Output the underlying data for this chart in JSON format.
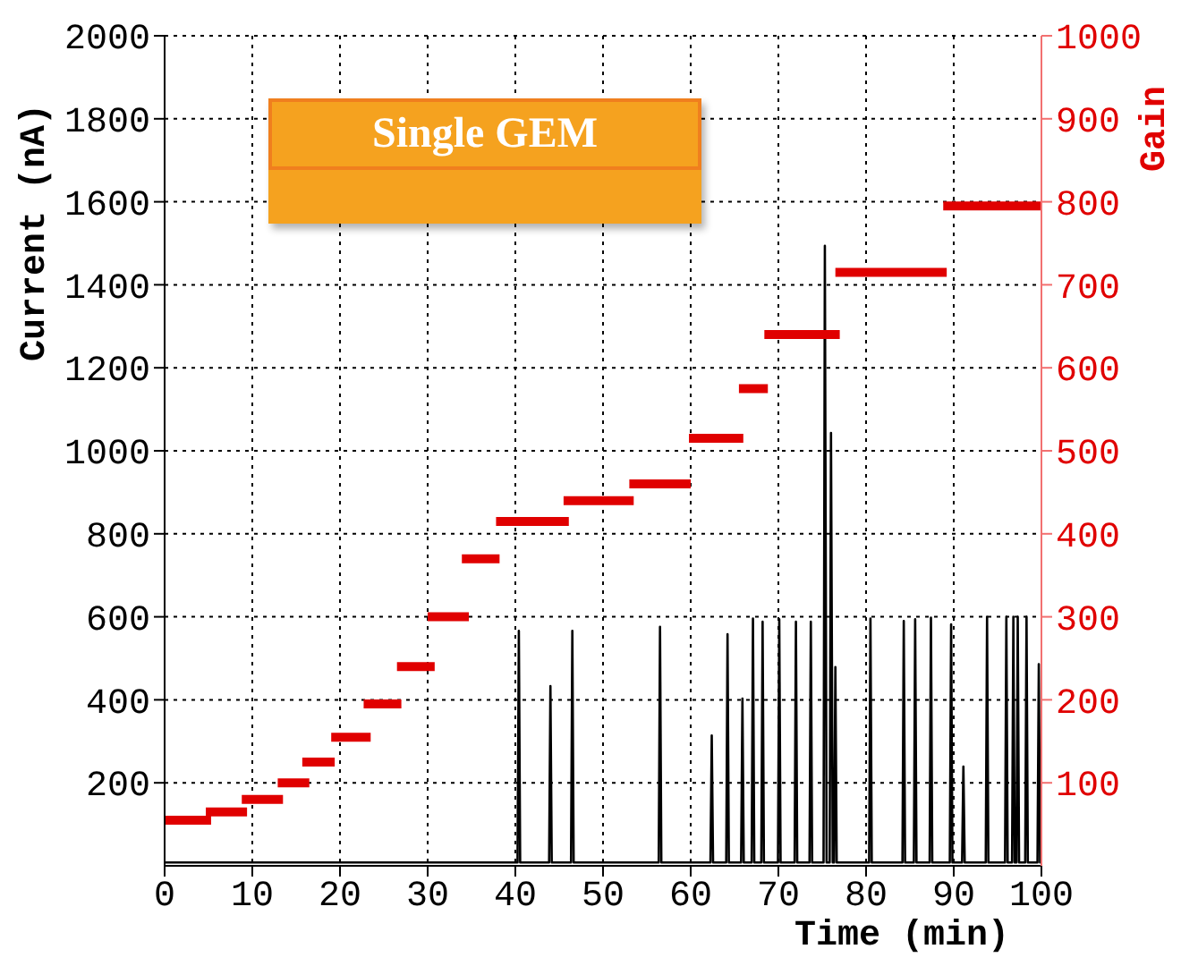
{
  "chart_data": {
    "type": "line",
    "title": "Single GEM",
    "xlabel": "Time (min)",
    "ylabel": "Current (nA)",
    "y2label": "Gain",
    "xlim": [
      0,
      100
    ],
    "xticks": [
      0,
      10,
      20,
      30,
      40,
      50,
      60,
      70,
      80,
      90,
      100
    ],
    "ylim": [
      0,
      2000
    ],
    "yticks": [
      200,
      400,
      600,
      800,
      1000,
      1200,
      1400,
      1600,
      1800,
      2000
    ],
    "y2lim": [
      0,
      1000
    ],
    "y2ticks": [
      100,
      200,
      300,
      400,
      500,
      600,
      700,
      800,
      900,
      1000
    ],
    "grid": true,
    "marker": "none",
    "series": [
      {
        "color": "#000000",
        "x": [
          0,
          40.25,
          40.4,
          40.55,
          43.85,
          44,
          44.15,
          46.35,
          46.5,
          46.65,
          56.35,
          56.5,
          56.65,
          62.25,
          62.4,
          62.55,
          64.05,
          64.2,
          64.35,
          65.75,
          65.9,
          66.05,
          66.95,
          67.1,
          67.25,
          68.05,
          68.2,
          68.35,
          69.95,
          70.1,
          70.25,
          71.85,
          72,
          72.15,
          73.55,
          73.7,
          73.85,
          75.15,
          75.3,
          75.5,
          75.85,
          76,
          76.2,
          76.35,
          76.5,
          76.65,
          80.35,
          80.5,
          80.65,
          84.15,
          84.3,
          84.45,
          85.45,
          85.6,
          85.75,
          87.25,
          87.4,
          87.55,
          89.55,
          89.7,
          89.85,
          90.95,
          91.1,
          91.25,
          93.65,
          93.8,
          93.95,
          95.85,
          96,
          96.15,
          96.65,
          96.8,
          96.95,
          97.15,
          97.3,
          97.45,
          98.15,
          98.3,
          98.45,
          99.55,
          99.7,
          99.85,
          100
        ],
        "values": [
          8,
          8,
          566,
          8,
          8,
          433,
          8,
          8,
          566,
          8,
          8,
          576,
          8,
          8,
          314,
          8,
          8,
          558,
          8,
          8,
          403,
          8,
          8,
          596,
          8,
          8,
          588,
          8,
          8,
          594,
          8,
          8,
          588,
          8,
          8,
          588,
          8,
          8,
          1494,
          8,
          8,
          1043,
          8,
          8,
          479,
          8,
          8,
          596,
          8,
          8,
          590,
          8,
          8,
          594,
          8,
          8,
          598,
          8,
          8,
          582,
          8,
          8,
          239,
          8,
          8,
          600,
          8,
          8,
          600,
          8,
          8,
          600,
          8,
          8,
          600,
          8,
          8,
          600,
          8,
          8,
          486,
          8,
          8
        ]
      },
      {
        "color": "#e00000",
        "axis": "y2",
        "x": [
          0,
          5.3
        ],
        "values": [
          55,
          55
        ]
      },
      {
        "color": "#e00000",
        "axis": "y2",
        "x": [
          4.7,
          9.4
        ],
        "values": [
          65,
          65
        ]
      },
      {
        "color": "#e00000",
        "axis": "y2",
        "x": [
          8.8,
          13.5
        ],
        "values": [
          80,
          80
        ]
      },
      {
        "color": "#e00000",
        "axis": "y2",
        "x": [
          12.9,
          16.5
        ],
        "values": [
          100,
          100
        ]
      },
      {
        "color": "#e00000",
        "axis": "y2",
        "x": [
          15.7,
          19.4
        ],
        "values": [
          125,
          125
        ]
      },
      {
        "color": "#e00000",
        "axis": "y2",
        "x": [
          19,
          23.5
        ],
        "values": [
          155,
          155
        ]
      },
      {
        "color": "#e00000",
        "axis": "y2",
        "x": [
          22.7,
          27
        ],
        "values": [
          195,
          195
        ]
      },
      {
        "color": "#e00000",
        "axis": "y2",
        "x": [
          26.5,
          30.8
        ],
        "values": [
          240,
          240
        ]
      },
      {
        "color": "#e00000",
        "axis": "y2",
        "x": [
          30,
          34.7
        ],
        "values": [
          300,
          300
        ]
      },
      {
        "color": "#e00000",
        "axis": "y2",
        "x": [
          33.9,
          38.2
        ],
        "values": [
          370,
          370
        ]
      },
      {
        "color": "#e00000",
        "axis": "y2",
        "x": [
          37.8,
          46.1
        ],
        "values": [
          415,
          415
        ]
      },
      {
        "color": "#e00000",
        "axis": "y2",
        "x": [
          45.5,
          53.5
        ],
        "values": [
          440,
          440
        ]
      },
      {
        "color": "#e00000",
        "axis": "y2",
        "x": [
          53,
          60
        ],
        "values": [
          460,
          460
        ]
      },
      {
        "color": "#e00000",
        "axis": "y2",
        "x": [
          59.8,
          66
        ],
        "values": [
          515,
          515
        ]
      },
      {
        "color": "#e00000",
        "axis": "y2",
        "x": [
          65.5,
          68.8
        ],
        "values": [
          575,
          575
        ]
      },
      {
        "color": "#e00000",
        "axis": "y2",
        "x": [
          68.4,
          77
        ],
        "values": [
          640,
          640
        ]
      },
      {
        "color": "#e00000",
        "axis": "y2",
        "x": [
          76.5,
          89.2
        ],
        "values": [
          715,
          715
        ]
      },
      {
        "color": "#e00000",
        "axis": "y2",
        "x": [
          88.8,
          100
        ],
        "values": [
          795,
          795
        ]
      }
    ]
  }
}
